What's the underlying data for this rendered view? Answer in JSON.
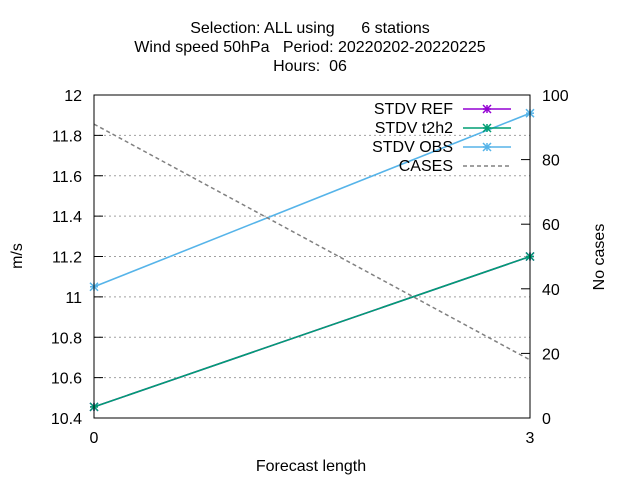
{
  "chart_data": {
    "type": "line",
    "title_lines": [
      "Selection: ALL using      6 stations",
      "Wind speed 50hPa   Period: 20220202-20220225",
      "Hours:  06"
    ],
    "xlabel": "Forecast length",
    "ylabel": "m/s",
    "y2label": "No cases",
    "x": [
      0,
      3
    ],
    "x_ticks": [
      "0",
      "3"
    ],
    "xlim": [
      0,
      3
    ],
    "ylim": [
      10.4,
      12.0
    ],
    "y_ticks": [
      "10.4",
      "10.6",
      "10.8",
      "11",
      "11.2",
      "11.4",
      "11.6",
      "11.8",
      "12"
    ],
    "y2lim": [
      0,
      100
    ],
    "y2_ticks": [
      "0",
      "20",
      "40",
      "60",
      "80",
      "100"
    ],
    "grid": true,
    "legend_position": "top-right",
    "series": [
      {
        "name": "STDV REF",
        "axis": "y1",
        "values": [
          10.455,
          11.2
        ],
        "color": "#9400d3",
        "style": "solid",
        "marker": "x"
      },
      {
        "name": "STDV t2h2",
        "axis": "y1",
        "values": [
          10.455,
          11.2
        ],
        "color": "#009e73",
        "style": "solid",
        "marker": "x"
      },
      {
        "name": "STDV OBS",
        "axis": "y1",
        "values": [
          11.05,
          11.91
        ],
        "color": "#56b4e9",
        "style": "solid",
        "marker": "x"
      },
      {
        "name": "CASES",
        "axis": "y2",
        "values": [
          91,
          18
        ],
        "color": "#808080",
        "style": "dashed",
        "marker": "none"
      }
    ]
  }
}
